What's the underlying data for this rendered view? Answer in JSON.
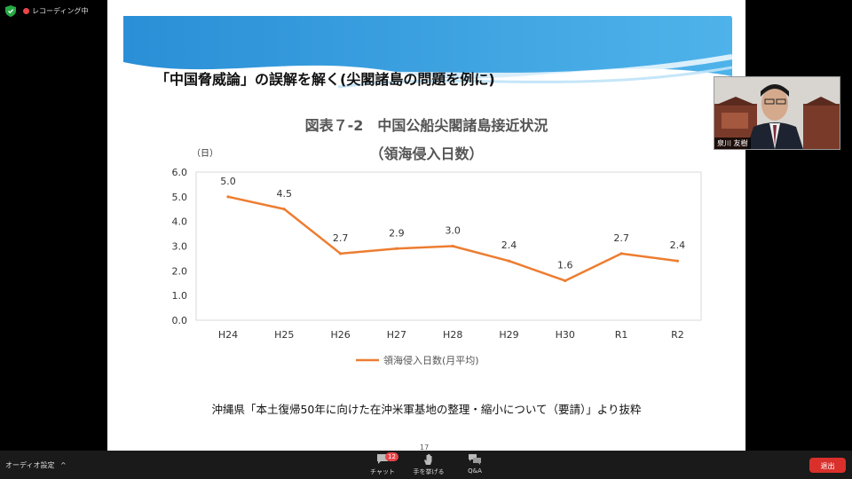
{
  "top_indicators": {
    "recording_label": "レコーディング中"
  },
  "slide": {
    "title": "「中国脅威論」の誤解を解く(尖閣諸島の問題を例に)",
    "chart_title_line1": "図表７-2　中国公船尖閣諸島接近状況",
    "chart_title_line2": "（領海侵入日数）",
    "caption": "沖縄県「本土復帰50年に向けた在沖米軍基地の整理・縮小について（要請）」より抜粋",
    "page_number": "17"
  },
  "chart_data": {
    "type": "line",
    "title": "図表７-2　中国公船尖閣諸島接近状況",
    "subtitle": "（領海侵入日数）",
    "ylabel": "（日）",
    "xlabel": "",
    "categories": [
      "H24",
      "H25",
      "H26",
      "H27",
      "H28",
      "H29",
      "H30",
      "R1",
      "R2"
    ],
    "series": [
      {
        "name": "領海侵入日数(月平均)",
        "values": [
          5.0,
          4.5,
          2.7,
          2.9,
          3.0,
          2.4,
          1.6,
          2.7,
          2.4
        ],
        "color": "#ed7d31"
      }
    ],
    "data_labels": [
      "5.0",
      "4.5",
      "2.7",
      "2.9",
      "3.0",
      "2.4",
      "1.6",
      "2.7",
      "2.4"
    ],
    "ylim": [
      0,
      6
    ],
    "yticks": [
      "0.0",
      "1.0",
      "2.0",
      "3.0",
      "4.0",
      "5.0",
      "6.0"
    ],
    "grid": false,
    "legend_position": "bottom"
  },
  "webcam": {
    "participant_name": "泉川 友樹"
  },
  "toolbar": {
    "audio_settings": "オーディオ設定",
    "chat_label": "チャット",
    "chat_badge": "12",
    "raise_hand_label": "手を挙げる",
    "qa_label": "Q&A",
    "leave_label": "退出"
  },
  "colors": {
    "line": "#ed7d31",
    "leave_button": "#d9302c",
    "banner": "#1e88d0"
  }
}
